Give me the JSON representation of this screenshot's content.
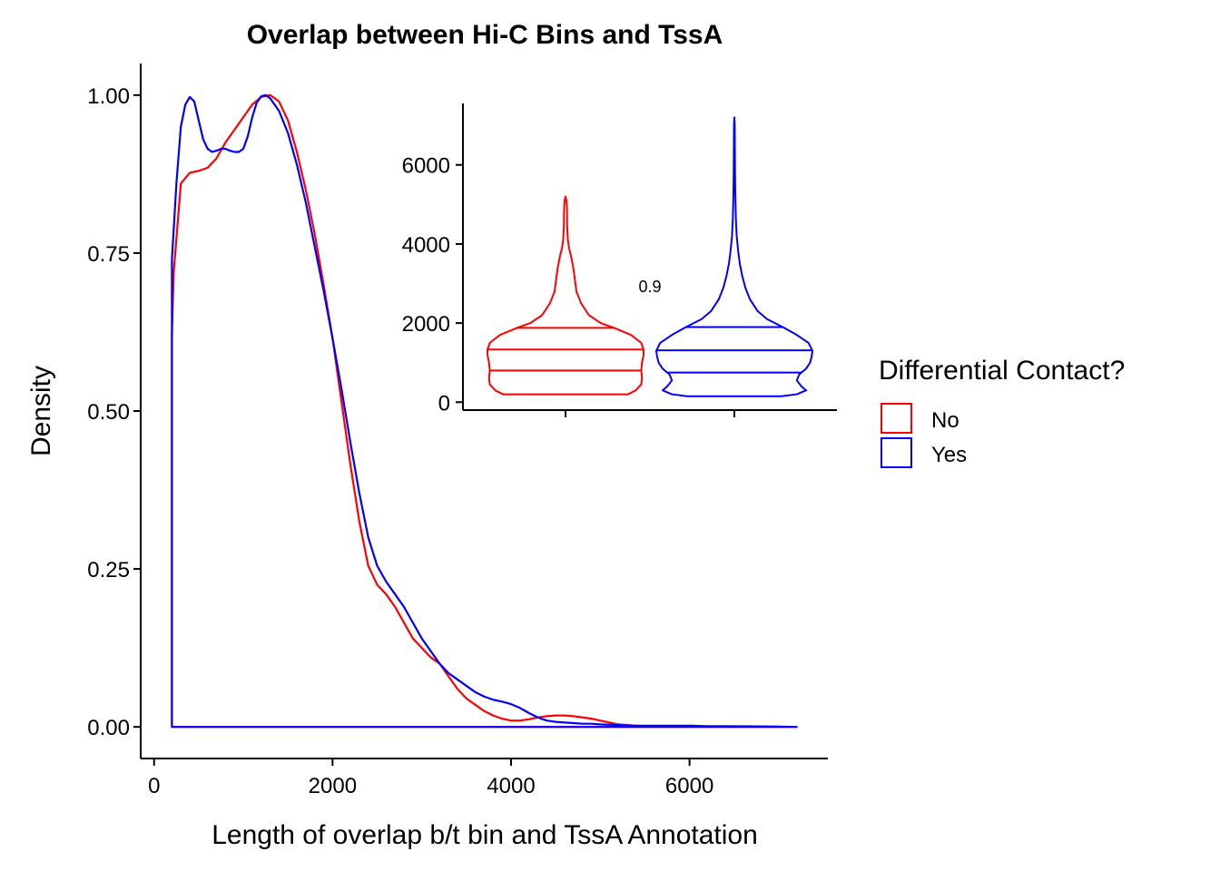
{
  "chart_data": [
    {
      "type": "line",
      "title": "Overlap between Hi-C Bins and TssA",
      "xlabel": "Length of overlap b/t bin and TssA Annotation",
      "ylabel": "Density",
      "xlim": [
        -150,
        7550
      ],
      "ylim": [
        -0.05,
        1.05
      ],
      "xticks": [
        0,
        2000,
        4000,
        6000
      ],
      "xtick_labels": [
        "0",
        "2000",
        "4000",
        "6000"
      ],
      "yticks": [
        0,
        0.25,
        0.5,
        0.75,
        1
      ],
      "ytick_labels": [
        "0.00",
        "0.25",
        "0.50",
        "0.75",
        "1.00"
      ],
      "grid": false,
      "series": [
        {
          "name": "No",
          "color": "#ff0000",
          "points": [
            [
              200,
              0.62
            ],
            [
              220,
              0.72
            ],
            [
              300,
              0.86
            ],
            [
              400,
              0.877
            ],
            [
              500,
              0.88
            ],
            [
              600,
              0.885
            ],
            [
              700,
              0.9
            ],
            [
              800,
              0.925
            ],
            [
              900,
              0.945
            ],
            [
              1000,
              0.965
            ],
            [
              1100,
              0.985
            ],
            [
              1200,
              0.997
            ],
            [
              1300,
              1.0
            ],
            [
              1400,
              0.99
            ],
            [
              1500,
              0.96
            ],
            [
              1600,
              0.91
            ],
            [
              1700,
              0.85
            ],
            [
              1800,
              0.78
            ],
            [
              1900,
              0.7
            ],
            [
              2000,
              0.615
            ],
            [
              2100,
              0.515
            ],
            [
              2200,
              0.415
            ],
            [
              2300,
              0.325
            ],
            [
              2400,
              0.255
            ],
            [
              2500,
              0.225
            ],
            [
              2600,
              0.21
            ],
            [
              2700,
              0.19
            ],
            [
              2800,
              0.165
            ],
            [
              2900,
              0.14
            ],
            [
              3000,
              0.125
            ],
            [
              3100,
              0.11
            ],
            [
              3200,
              0.1
            ],
            [
              3300,
              0.08
            ],
            [
              3400,
              0.06
            ],
            [
              3500,
              0.045
            ],
            [
              3600,
              0.035
            ],
            [
              3700,
              0.025
            ],
            [
              3800,
              0.018
            ],
            [
              3900,
              0.013
            ],
            [
              4000,
              0.01
            ],
            [
              4100,
              0.01
            ],
            [
              4200,
              0.012
            ],
            [
              4300,
              0.015
            ],
            [
              4400,
              0.017
            ],
            [
              4500,
              0.018
            ],
            [
              4600,
              0.018
            ],
            [
              4700,
              0.017
            ],
            [
              4800,
              0.015
            ],
            [
              4900,
              0.013
            ],
            [
              5000,
              0.01
            ],
            [
              5100,
              0.007
            ],
            [
              5200,
              0.004
            ],
            [
              5400,
              0.002
            ],
            [
              5600,
              0.001
            ],
            [
              6000,
              0.001
            ],
            [
              6400,
              0.001
            ],
            [
              6800,
              0.0005
            ],
            [
              7200,
              0.0
            ]
          ]
        },
        {
          "name": "Yes",
          "color": "#0000ff",
          "points": [
            [
              200,
              0.74
            ],
            [
              250,
              0.86
            ],
            [
              300,
              0.95
            ],
            [
              350,
              0.985
            ],
            [
              400,
              0.997
            ],
            [
              450,
              0.99
            ],
            [
              500,
              0.96
            ],
            [
              550,
              0.93
            ],
            [
              600,
              0.915
            ],
            [
              650,
              0.91
            ],
            [
              700,
              0.912
            ],
            [
              750,
              0.915
            ],
            [
              800,
              0.915
            ],
            [
              850,
              0.912
            ],
            [
              900,
              0.91
            ],
            [
              950,
              0.91
            ],
            [
              1000,
              0.915
            ],
            [
              1050,
              0.935
            ],
            [
              1100,
              0.965
            ],
            [
              1150,
              0.988
            ],
            [
              1200,
              0.998
            ],
            [
              1250,
              1.0
            ],
            [
              1300,
              0.995
            ],
            [
              1400,
              0.975
            ],
            [
              1500,
              0.94
            ],
            [
              1600,
              0.89
            ],
            [
              1700,
              0.83
            ],
            [
              1800,
              0.76
            ],
            [
              1900,
              0.69
            ],
            [
              2000,
              0.615
            ],
            [
              2100,
              0.535
            ],
            [
              2200,
              0.45
            ],
            [
              2300,
              0.37
            ],
            [
              2400,
              0.3
            ],
            [
              2500,
              0.255
            ],
            [
              2600,
              0.23
            ],
            [
              2700,
              0.21
            ],
            [
              2800,
              0.19
            ],
            [
              2900,
              0.165
            ],
            [
              3000,
              0.14
            ],
            [
              3100,
              0.12
            ],
            [
              3200,
              0.1
            ],
            [
              3300,
              0.085
            ],
            [
              3400,
              0.075
            ],
            [
              3500,
              0.065
            ],
            [
              3600,
              0.055
            ],
            [
              3700,
              0.048
            ],
            [
              3800,
              0.043
            ],
            [
              3900,
              0.04
            ],
            [
              4000,
              0.036
            ],
            [
              4100,
              0.03
            ],
            [
              4200,
              0.022
            ],
            [
              4300,
              0.015
            ],
            [
              4400,
              0.01
            ],
            [
              4500,
              0.008
            ],
            [
              4600,
              0.007
            ],
            [
              4700,
              0.006
            ],
            [
              4800,
              0.005
            ],
            [
              4900,
              0.005
            ],
            [
              5000,
              0.004
            ],
            [
              5200,
              0.003
            ],
            [
              5400,
              0.002
            ],
            [
              5600,
              0.002
            ],
            [
              5800,
              0.002
            ],
            [
              6000,
              0.002
            ],
            [
              6200,
              0.001
            ],
            [
              6600,
              0.001
            ],
            [
              7000,
              0.0005
            ],
            [
              7200,
              0.0
            ]
          ]
        }
      ]
    },
    {
      "type": "violin",
      "categories": [
        "No",
        "Yes"
      ],
      "ylim": [
        -200,
        7600
      ],
      "yticks": [
        0,
        2000,
        4000,
        6000
      ],
      "ytick_labels": [
        "0",
        "2000",
        "4000",
        "6000"
      ],
      "annotation": "0.9",
      "series": [
        {
          "name": "No",
          "color": "#ff0000",
          "min": 200,
          "max": 5200,
          "quantiles": [
            800,
            1330,
            1880
          ],
          "profile": [
            [
              200,
              0.8
            ],
            [
              300,
              0.9
            ],
            [
              450,
              0.97
            ],
            [
              600,
              0.98
            ],
            [
              800,
              0.97
            ],
            [
              1000,
              0.98
            ],
            [
              1200,
              1.0
            ],
            [
              1330,
              1.0
            ],
            [
              1500,
              0.97
            ],
            [
              1700,
              0.84
            ],
            [
              1880,
              0.62
            ],
            [
              2000,
              0.45
            ],
            [
              2200,
              0.3
            ],
            [
              2500,
              0.2
            ],
            [
              2800,
              0.14
            ],
            [
              3100,
              0.12
            ],
            [
              3400,
              0.1
            ],
            [
              3700,
              0.07
            ],
            [
              3900,
              0.045
            ],
            [
              4100,
              0.03
            ],
            [
              4300,
              0.025
            ],
            [
              4500,
              0.02
            ],
            [
              4700,
              0.02
            ],
            [
              4900,
              0.018
            ],
            [
              5100,
              0.012
            ],
            [
              5200,
              0.0
            ]
          ]
        },
        {
          "name": "Yes",
          "color": "#0000ff",
          "min": 150,
          "max": 7200,
          "quantiles": [
            750,
            1310,
            1900
          ],
          "profile": [
            [
              150,
              0.6
            ],
            [
              200,
              0.8
            ],
            [
              300,
              0.92
            ],
            [
              400,
              0.86
            ],
            [
              550,
              0.8
            ],
            [
              700,
              0.83
            ],
            [
              850,
              0.92
            ],
            [
              1000,
              0.97
            ],
            [
              1150,
              0.99
            ],
            [
              1300,
              1.0
            ],
            [
              1500,
              0.95
            ],
            [
              1700,
              0.8
            ],
            [
              1900,
              0.62
            ],
            [
              2100,
              0.42
            ],
            [
              2300,
              0.3
            ],
            [
              2600,
              0.2
            ],
            [
              2900,
              0.14
            ],
            [
              3200,
              0.1
            ],
            [
              3500,
              0.07
            ],
            [
              3800,
              0.05
            ],
            [
              4200,
              0.03
            ],
            [
              4600,
              0.02
            ],
            [
              5000,
              0.015
            ],
            [
              5500,
              0.01
            ],
            [
              6000,
              0.008
            ],
            [
              6500,
              0.006
            ],
            [
              7000,
              0.005
            ],
            [
              7200,
              0.0
            ]
          ]
        }
      ]
    }
  ],
  "legend": {
    "title": "Differential Contact?",
    "items": [
      {
        "label": "No",
        "color": "#ff0000"
      },
      {
        "label": "Yes",
        "color": "#0000ff"
      }
    ]
  }
}
